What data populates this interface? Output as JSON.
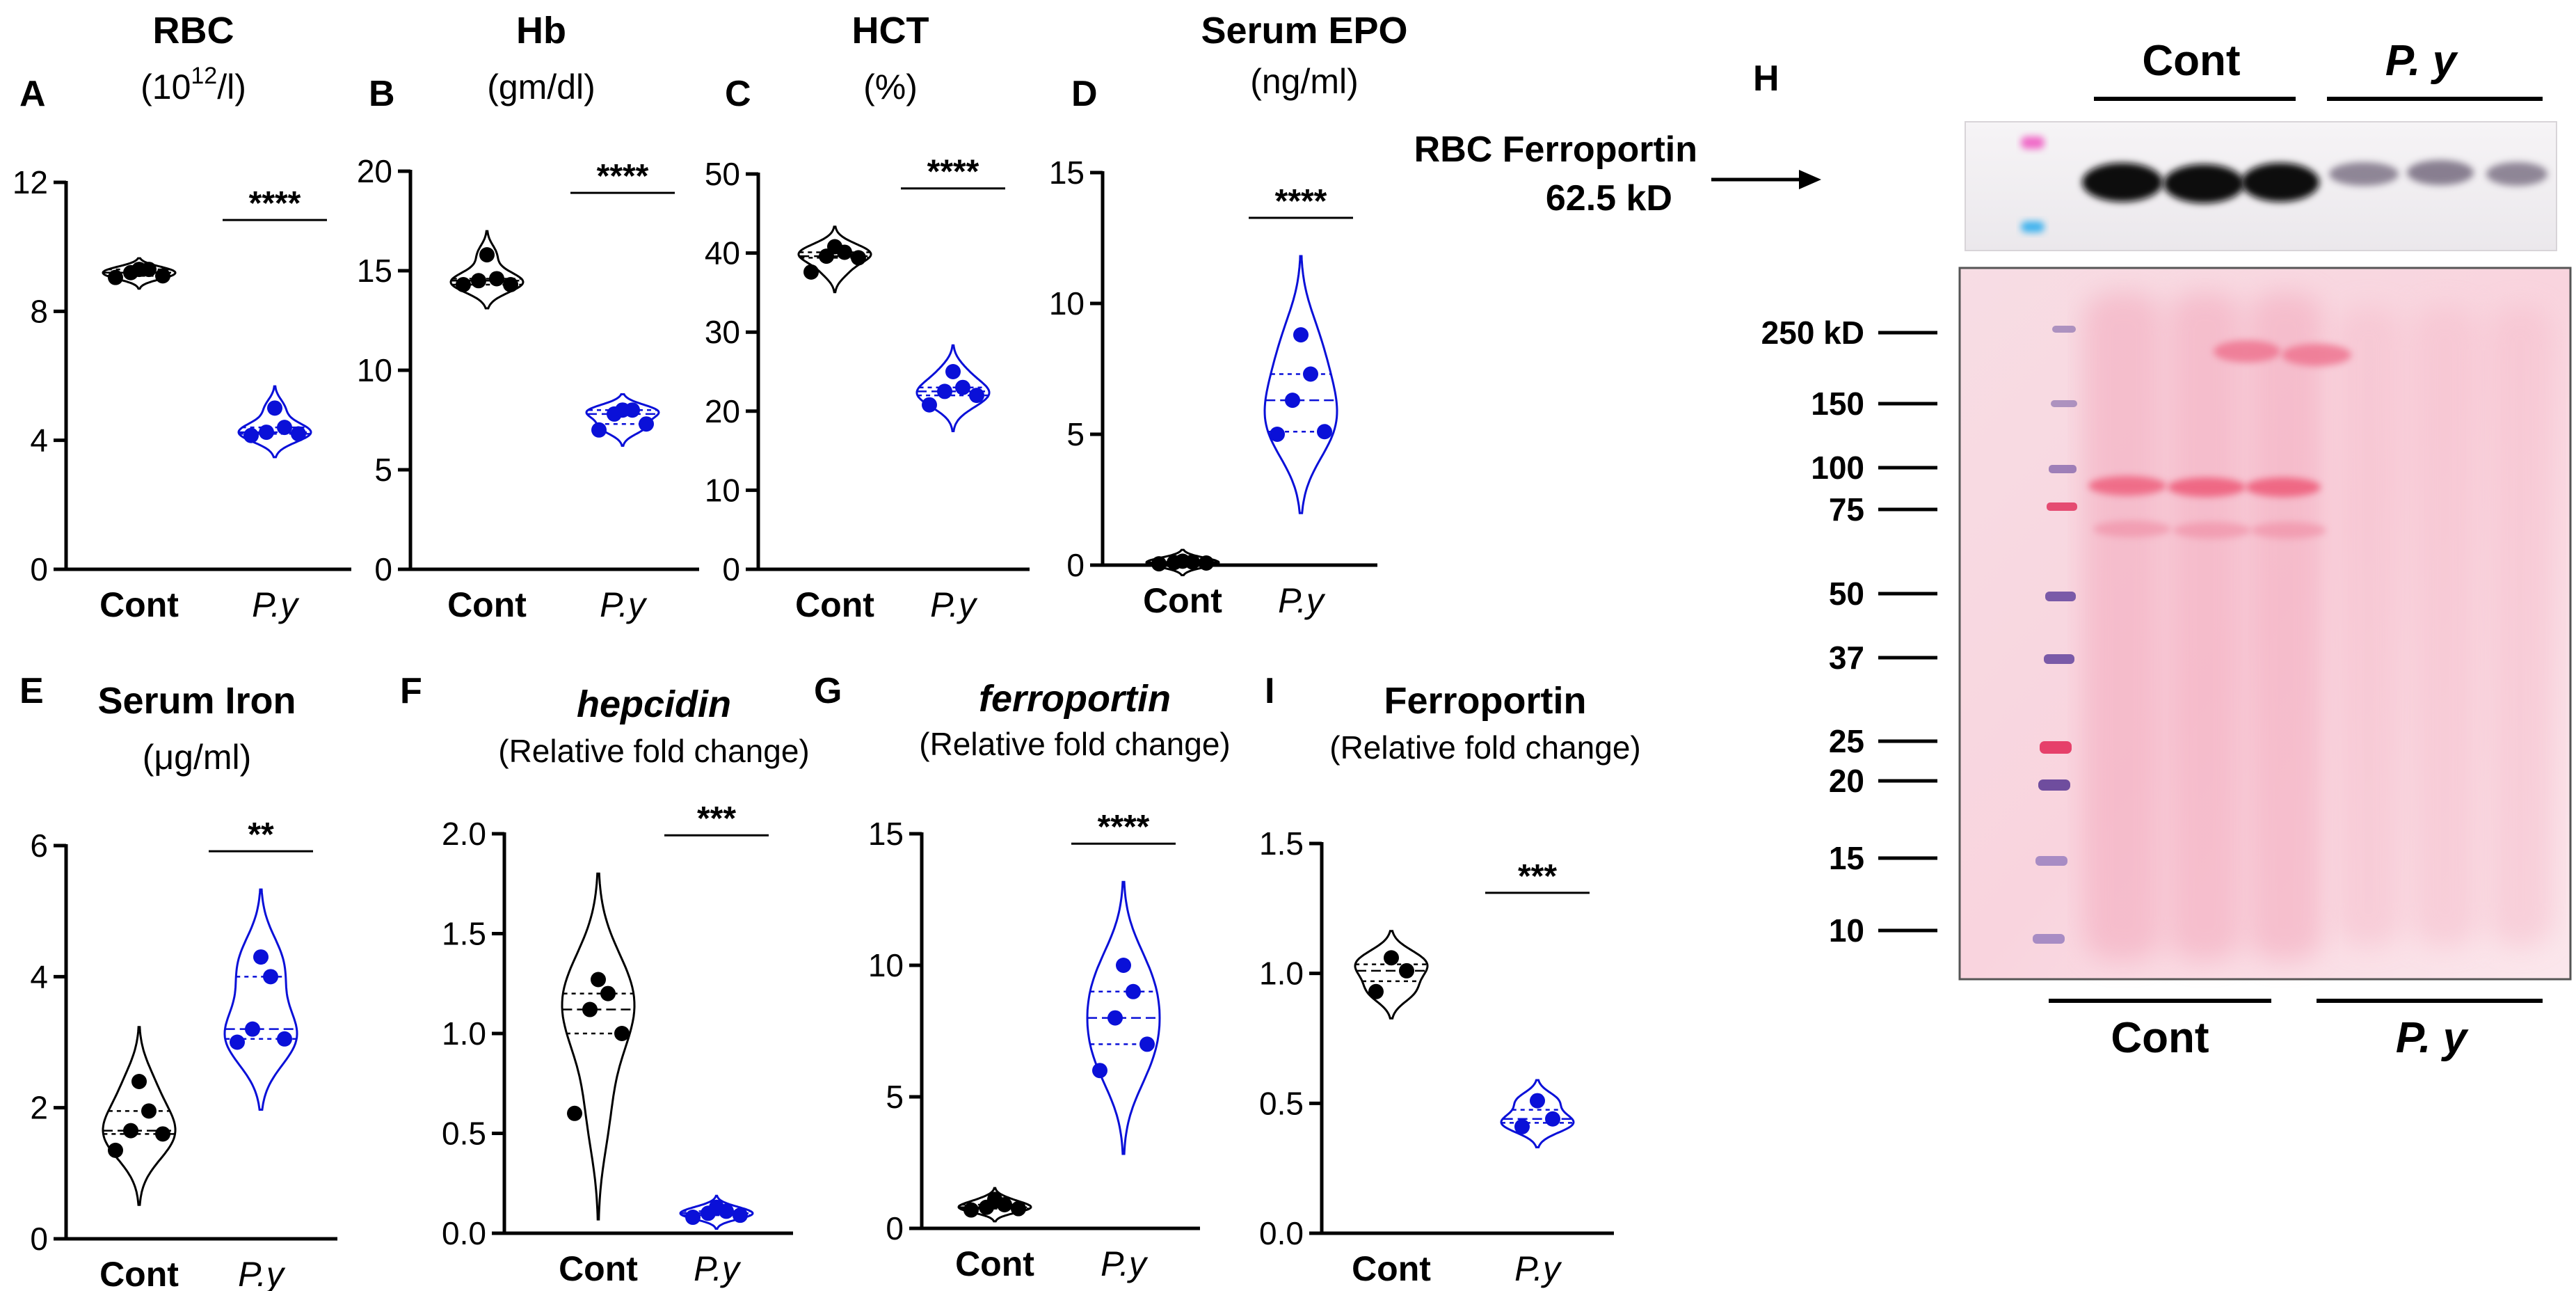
{
  "chart_data": [
    {
      "panel": "A",
      "type": "violin",
      "title": "RBC",
      "unit_base": "(10",
      "unit_sup": "12",
      "unit_tail": "/l)",
      "ylim": [
        0,
        12
      ],
      "ticks": [
        0,
        4,
        8,
        12
      ],
      "categories": [
        "Cont",
        "P.y"
      ],
      "significance": "****",
      "series": [
        {
          "name": "Cont",
          "color": "#000000",
          "values": [
            9.05,
            9.1,
            9.2,
            9.3,
            9.3
          ]
        },
        {
          "name": "P.y",
          "color": "#0a10d8",
          "values": [
            4.15,
            4.2,
            4.25,
            4.4,
            5.0
          ]
        }
      ]
    },
    {
      "panel": "B",
      "type": "violin",
      "title": "Hb",
      "unit": "(gm/dl)",
      "ylim": [
        0,
        20
      ],
      "ticks": [
        0,
        5,
        10,
        15,
        20
      ],
      "categories": [
        "Cont",
        "P.y"
      ],
      "significance": "****",
      "series": [
        {
          "name": "Cont",
          "color": "#000000",
          "values": [
            14.3,
            14.3,
            14.5,
            14.6,
            15.8
          ]
        },
        {
          "name": "P.y",
          "color": "#0a10d8",
          "values": [
            7.0,
            7.3,
            7.8,
            8.0,
            8.0
          ]
        }
      ]
    },
    {
      "panel": "C",
      "type": "violin",
      "title": "HCT",
      "unit": "(%)",
      "ylim": [
        0,
        50
      ],
      "ticks": [
        0,
        10,
        20,
        30,
        40,
        50
      ],
      "categories": [
        "Cont",
        "P.y"
      ],
      "significance": "****",
      "series": [
        {
          "name": "Cont",
          "color": "#000000",
          "values": [
            37.6,
            39.4,
            39.6,
            40.1,
            40.8
          ]
        },
        {
          "name": "P.y",
          "color": "#0a10d8",
          "values": [
            20.8,
            22.0,
            22.5,
            23.0,
            25.0
          ]
        }
      ]
    },
    {
      "panel": "D",
      "type": "violin",
      "title": "Serum EPO",
      "unit": "(ng/ml)",
      "ylim": [
        0,
        15
      ],
      "ticks": [
        0,
        5,
        10,
        15
      ],
      "categories": [
        "Cont",
        "P.y"
      ],
      "significance": "****",
      "series": [
        {
          "name": "Cont",
          "color": "#000000",
          "values": [
            0.05,
            0.08,
            0.1,
            0.12,
            0.15
          ]
        },
        {
          "name": "P.y",
          "color": "#0a10d8",
          "values": [
            5.0,
            5.1,
            6.3,
            7.3,
            8.8
          ]
        }
      ]
    },
    {
      "panel": "E",
      "type": "violin",
      "title": "Serum Iron",
      "unit": "(μg/ml)",
      "ylim": [
        0,
        6
      ],
      "ticks": [
        0,
        2,
        4,
        6
      ],
      "categories": [
        "Cont",
        "P.y"
      ],
      "significance": "**",
      "series": [
        {
          "name": "Cont",
          "color": "#000000",
          "values": [
            1.35,
            1.6,
            1.65,
            1.95,
            2.4
          ]
        },
        {
          "name": "P.y",
          "color": "#0a10d8",
          "values": [
            3.0,
            3.05,
            3.2,
            4.0,
            4.3
          ]
        }
      ]
    },
    {
      "panel": "F",
      "type": "violin",
      "title": "hepcidin",
      "title_italic": true,
      "unit": "(Relative fold change)",
      "ylim": [
        0,
        2.0
      ],
      "ticks": [
        "0.0",
        "0.5",
        "1.0",
        "1.5",
        "2.0"
      ],
      "categories": [
        "Cont",
        "P.y"
      ],
      "significance": "***",
      "series": [
        {
          "name": "Cont",
          "color": "#000000",
          "values": [
            0.6,
            1.0,
            1.12,
            1.2,
            1.27
          ]
        },
        {
          "name": "P.y",
          "color": "#0a10d8",
          "values": [
            0.08,
            0.09,
            0.1,
            0.11,
            0.13
          ]
        }
      ]
    },
    {
      "panel": "G",
      "type": "violin",
      "title": "ferroportin",
      "title_italic": true,
      "unit": "(Relative fold change)",
      "ylim": [
        0,
        15
      ],
      "ticks": [
        0,
        5,
        10,
        15
      ],
      "categories": [
        "Cont",
        "P.y"
      ],
      "significance": "****",
      "series": [
        {
          "name": "Cont",
          "color": "#000000",
          "values": [
            0.7,
            0.75,
            0.8,
            0.9,
            1.1
          ]
        },
        {
          "name": "P.y",
          "color": "#0a10d8",
          "values": [
            6.0,
            7.0,
            8.0,
            9.0,
            10.0
          ]
        }
      ]
    },
    {
      "panel": "I",
      "type": "violin",
      "title": "Ferroportin",
      "unit": "(Relative fold change)",
      "ylim": [
        0,
        1.5
      ],
      "ticks": [
        "0.0",
        "0.5",
        "1.0",
        "1.5"
      ],
      "categories": [
        "Cont",
        "P.y"
      ],
      "significance": "***",
      "series": [
        {
          "name": "Cont",
          "color": "#000000",
          "values": [
            0.93,
            1.01,
            1.06
          ]
        },
        {
          "name": "P.y",
          "color": "#0a10d8",
          "values": [
            0.41,
            0.44,
            0.51
          ]
        }
      ]
    }
  ],
  "blot": {
    "panel": "H",
    "group_labels": [
      "Cont",
      "P. y"
    ],
    "band_label_line1": "RBC Ferroportin",
    "band_label_line2": "62.5 kD",
    "marker_labels": [
      "250 kD",
      "150",
      "100",
      "75",
      "50",
      "37",
      "25",
      "20",
      "15",
      "10"
    ],
    "bottom_group_labels": [
      "Cont",
      "P. y"
    ]
  }
}
